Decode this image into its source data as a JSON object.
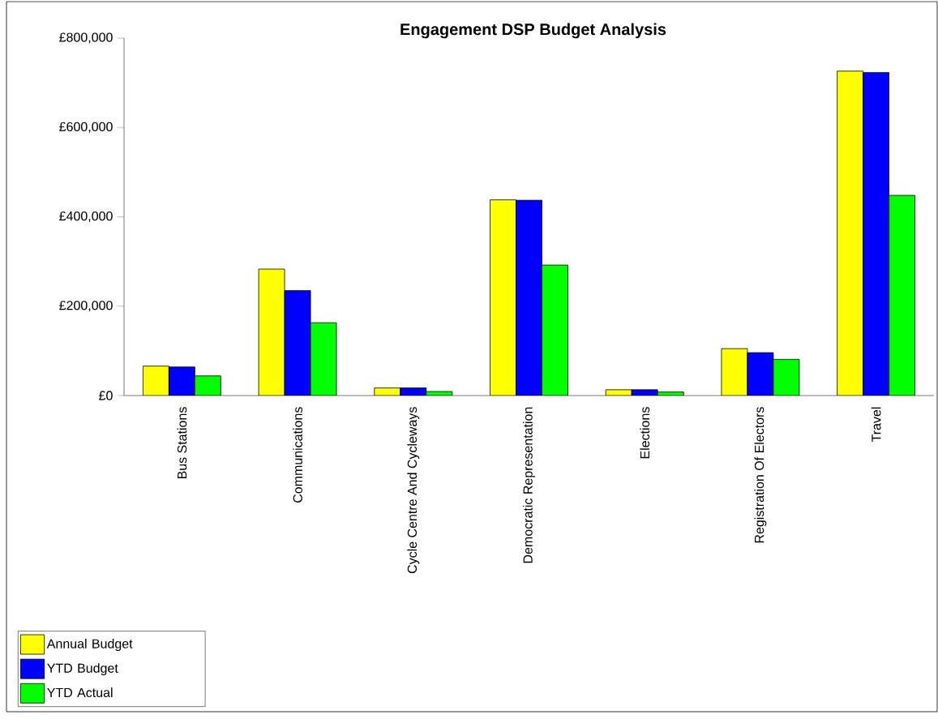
{
  "chart_data": {
    "type": "bar",
    "title": "Engagement DSP Budget Analysis",
    "categories": [
      "Bus Stations",
      "Communications",
      "Cycle Centre And Cycleways",
      "Democratic Representation",
      "Elections",
      "Registration Of Electors",
      "Travel"
    ],
    "series": [
      {
        "name": "Annual Budget",
        "color": "#ffff00",
        "values": [
          66000,
          283000,
          17000,
          438000,
          13000,
          105000,
          726000
        ]
      },
      {
        "name": "YTD Budget",
        "color": "#0000ff",
        "values": [
          64000,
          235000,
          17000,
          437000,
          13000,
          96000,
          723000
        ]
      },
      {
        "name": "YTD Actual",
        "color": "#00ff00",
        "values": [
          44000,
          163000,
          9000,
          292000,
          8000,
          81000,
          448000
        ]
      }
    ],
    "ylim": [
      0,
      800000
    ],
    "yticks": [
      {
        "value": 0,
        "label": "£0"
      },
      {
        "value": 200000,
        "label": "£200,000"
      },
      {
        "value": 400000,
        "label": "£400,000"
      },
      {
        "value": 600000,
        "label": "£600,000"
      },
      {
        "value": 800000,
        "label": "£800,000"
      }
    ],
    "grid": false,
    "legend": "bottom left"
  }
}
